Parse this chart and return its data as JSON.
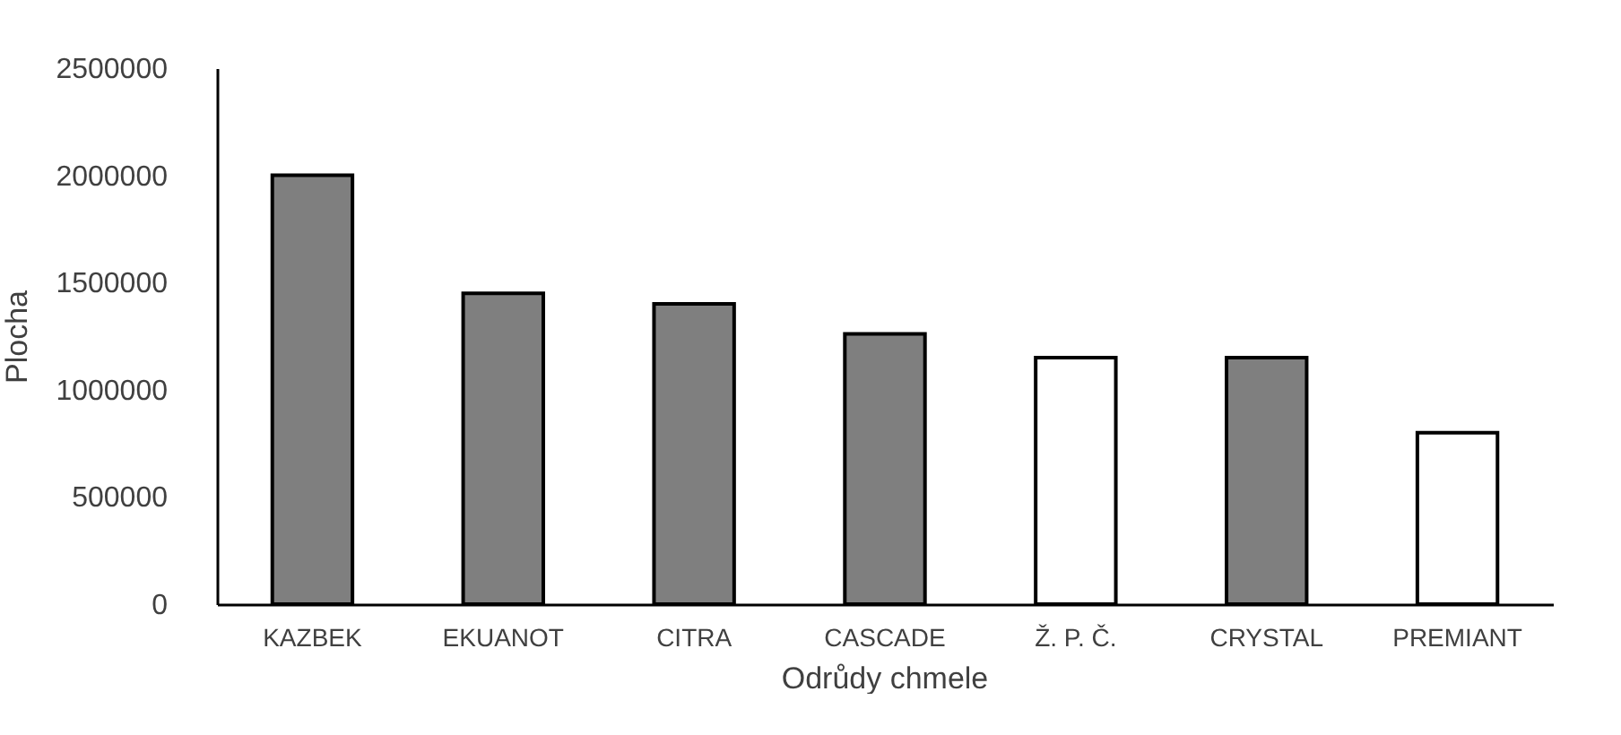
{
  "chart_data": {
    "type": "bar",
    "xlabel": "Odrůdy chmele",
    "ylabel": "Plocha",
    "categories": [
      "KAZBEK",
      "EKUANOT",
      "CITRA",
      "CASCADE",
      "Ž. P. Č.",
      "CRYSTAL",
      "PREMIANT"
    ],
    "values": [
      2000000,
      1450000,
      1400000,
      1260000,
      1150000,
      1150000,
      800000
    ],
    "colors": [
      "#7f7f7f",
      "#7f7f7f",
      "#7f7f7f",
      "#7f7f7f",
      "#ffffff",
      "#7f7f7f",
      "#ffffff"
    ],
    "ylim": [
      0,
      2500000
    ],
    "yticks": [
      0,
      500000,
      1000000,
      1500000,
      2000000,
      2500000
    ],
    "grid": false
  }
}
